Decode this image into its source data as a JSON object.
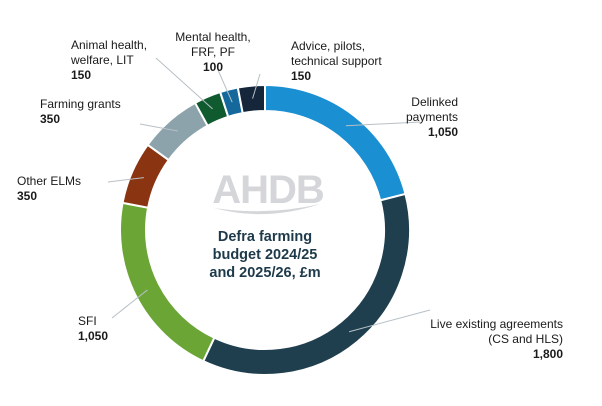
{
  "chart_data": {
    "type": "pie",
    "subtype": "donut",
    "title_lines": [
      "Defra farming",
      "budget 2024/25",
      "and 2025/26, £m"
    ],
    "watermark": "AHDB",
    "unit": "£m",
    "slices": [
      {
        "label_lines": [
          "Delinked",
          "payments"
        ],
        "value": 1050,
        "value_label": "1,050",
        "color": "#1a8fd2"
      },
      {
        "label_lines": [
          "Live existing agreements",
          "(CS and HLS)"
        ],
        "value": 1800,
        "value_label": "1,800",
        "color": "#1f3f4f"
      },
      {
        "label_lines": [
          "SFI"
        ],
        "value": 1050,
        "value_label": "1,050",
        "color": "#6aa535"
      },
      {
        "label_lines": [
          "Other ELMs"
        ],
        "value": 350,
        "value_label": "350",
        "color": "#8a3411"
      },
      {
        "label_lines": [
          "Farming grants"
        ],
        "value": 350,
        "value_label": "350",
        "color": "#8ca3ac"
      },
      {
        "label_lines": [
          "Animal health,",
          "welfare, LIT"
        ],
        "value": 150,
        "value_label": "150",
        "color": "#0f5a2e"
      },
      {
        "label_lines": [
          "Mental health,",
          "FRF, PF"
        ],
        "value": 100,
        "value_label": "100",
        "color": "#14689c"
      },
      {
        "label_lines": [
          "Advice, pilots,",
          "technical support"
        ],
        "value": 150,
        "value_label": "150",
        "color": "#15253a"
      }
    ]
  }
}
